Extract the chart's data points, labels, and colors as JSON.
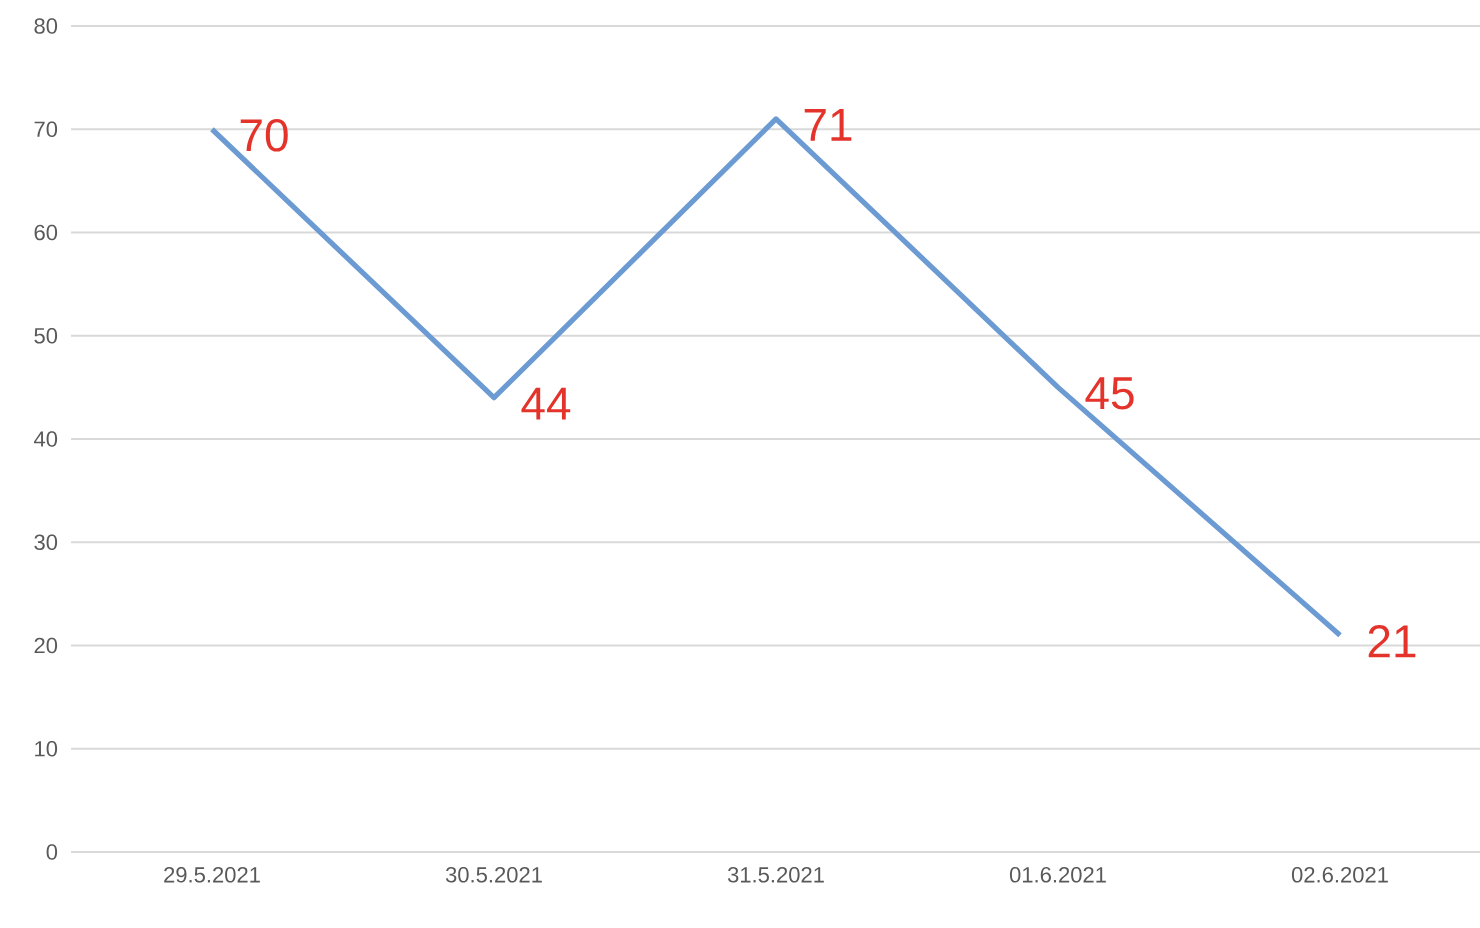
{
  "chart_data": {
    "type": "line",
    "categories": [
      "29.5.2021",
      "30.5.2021",
      "31.5.2021",
      "01.6.2021",
      "02.6.2021"
    ],
    "series": [
      {
        "color": "#6b9bd2",
        "values": [
          70,
          44,
          71,
          45,
          21
        ]
      }
    ],
    "ylim": [
      0,
      80
    ],
    "yticks": [
      0,
      10,
      20,
      30,
      40,
      50,
      60,
      70,
      80
    ],
    "grid": "y",
    "data_labels": true,
    "line_style": "solid"
  }
}
